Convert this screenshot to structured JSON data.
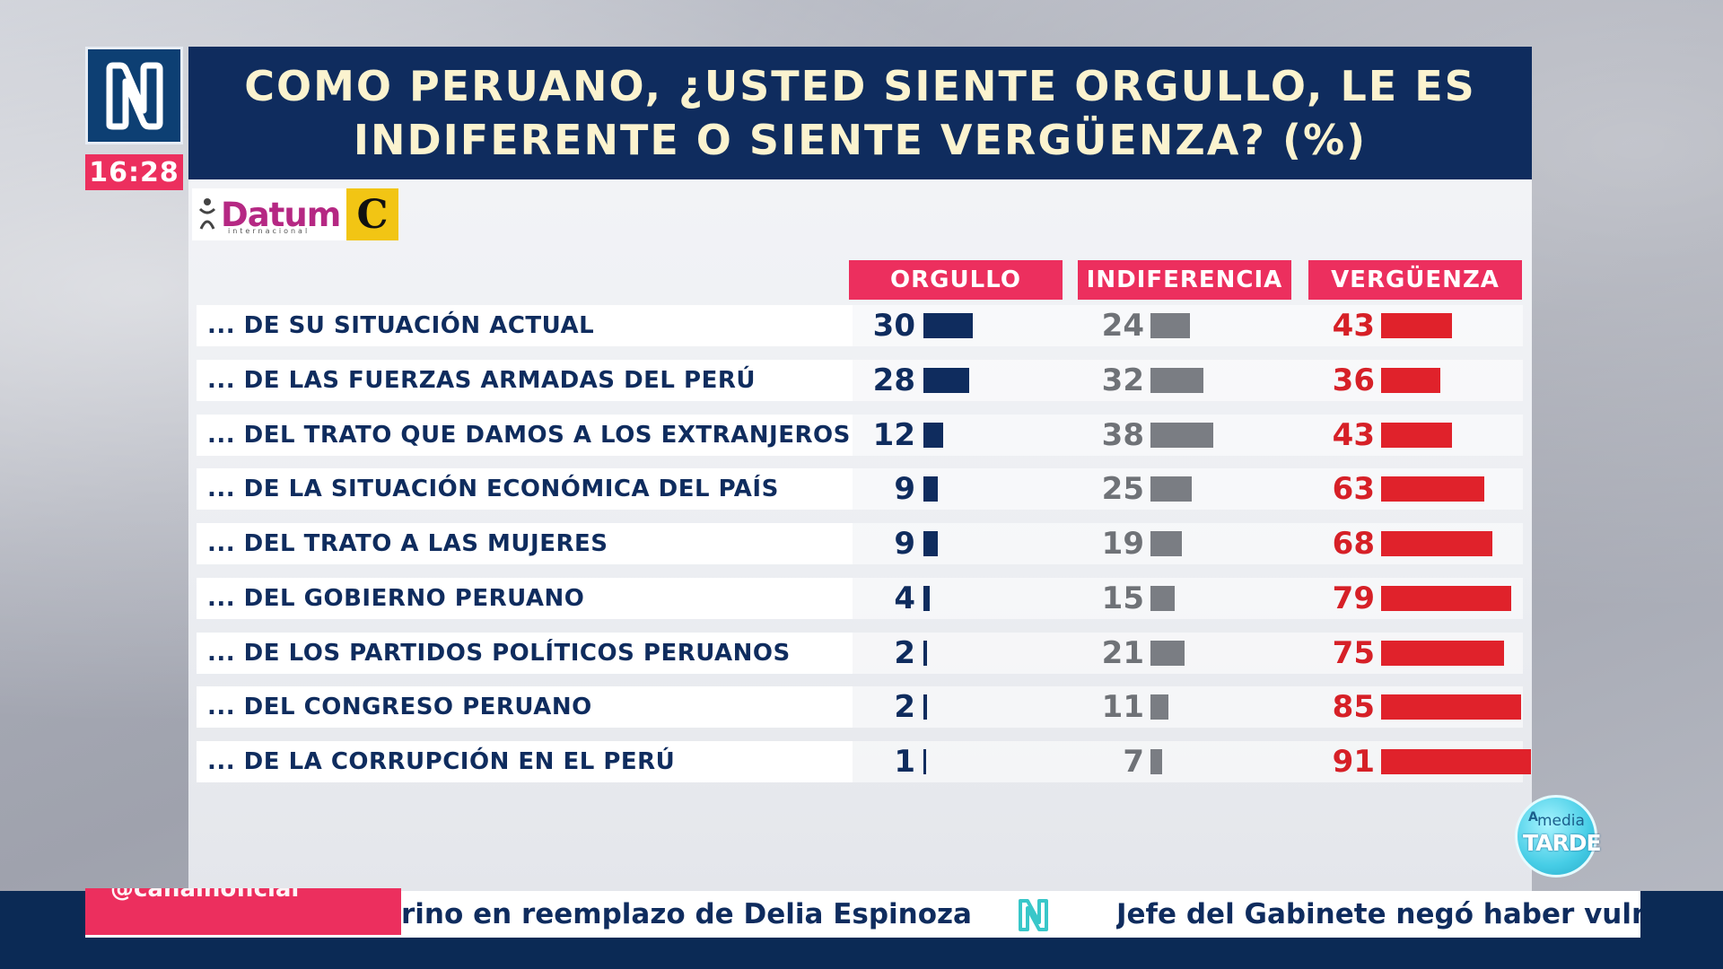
{
  "channel": {
    "clock": "16:28"
  },
  "chart_data": {
    "type": "bar",
    "title_lines": [
      "COMO PERUANO, ¿USTED SIENTE ORGULLO, LE ES",
      "INDIFERENTE O SIENTE VERGÜENZA? (%)"
    ],
    "source": {
      "datum_word": "Datum",
      "datum_sub": "internacional",
      "partner_letter": "C"
    },
    "categories": [
      "... DE SU SITUACIÓN ACTUAL",
      "... DE LAS FUERZAS ARMADAS DEL PERÚ",
      "... DEL TRATO QUE DAMOS A LOS EXTRANJEROS",
      "... DE LA SITUACIÓN ECONÓMICA DEL PAÍS",
      "... DEL TRATO A LAS MUJERES",
      "... DEL GOBIERNO PERUANO",
      "... DE LOS PARTIDOS POLÍTICOS PERUANOS",
      "... DEL CONGRESO PERUANO",
      "... DE LA CORRUPCIÓN EN EL PERÚ"
    ],
    "series": [
      {
        "name": "ORGULLO",
        "color": "#0f2c5e",
        "values": [
          30,
          28,
          12,
          9,
          9,
          4,
          2,
          2,
          1
        ]
      },
      {
        "name": "INDIFERENCIA",
        "color": "#7a7d83",
        "values": [
          24,
          32,
          38,
          25,
          19,
          15,
          21,
          11,
          7
        ]
      },
      {
        "name": "VERGÜENZA",
        "color": "#e0222b",
        "values": [
          43,
          36,
          43,
          63,
          68,
          79,
          75,
          85,
          91
        ]
      }
    ],
    "value_colors": [
      "#0f2c5e",
      "#6f7277",
      "#d62027"
    ],
    "ylim": [
      0,
      100
    ]
  },
  "ticker": {
    "tag": "@canalnoficial",
    "headline_1": "rino en reemplazo de Delia Espinoza",
    "headline_2": "Jefe del Gabinete negó haber vulne"
  },
  "show": {
    "a": "A",
    "media": "media",
    "tarde": "TARDE"
  }
}
